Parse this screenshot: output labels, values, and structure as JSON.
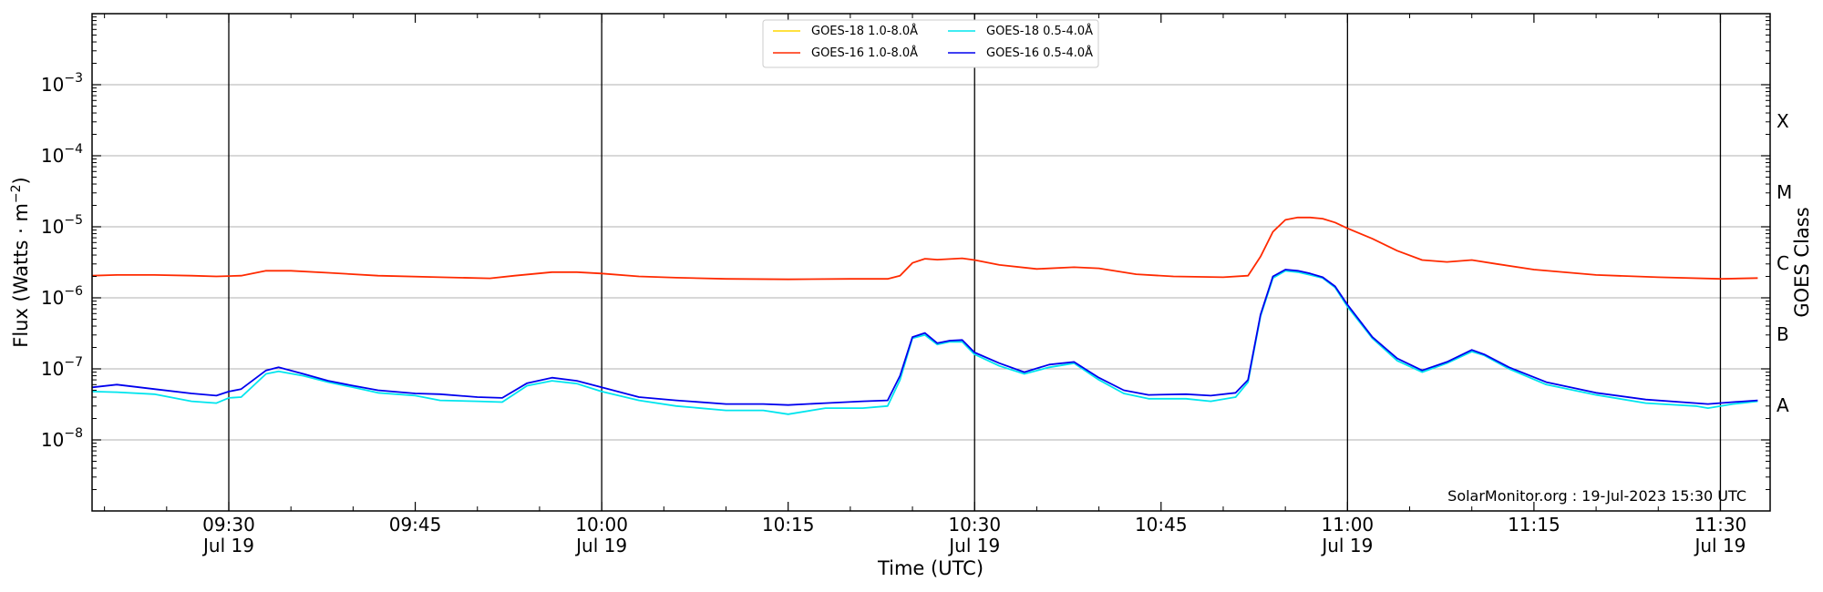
{
  "chart_data": {
    "type": "line",
    "xlabel": "Time (UTC)",
    "ylabel": "Flux (Watts · m⁻²)",
    "right_axis_label": "GOES Class",
    "y_scale": "log",
    "ylim": [
      1e-09,
      0.01
    ],
    "xlim": [
      "09:19",
      "11:34"
    ],
    "grid": "horizontal",
    "legend_position": "top-center",
    "watermark": "SolarMonitor.org : 19-Jul-2023 15:30 UTC",
    "x_ticks": [
      {
        "time": "09:30",
        "line1": "09:30",
        "line2": "Jul 19"
      },
      {
        "time": "09:45",
        "line1": "09:45",
        "line2": ""
      },
      {
        "time": "10:00",
        "line1": "10:00",
        "line2": "Jul 19"
      },
      {
        "time": "10:15",
        "line1": "10:15",
        "line2": ""
      },
      {
        "time": "10:30",
        "line1": "10:30",
        "line2": "Jul 19"
      },
      {
        "time": "10:45",
        "line1": "10:45",
        "line2": ""
      },
      {
        "time": "11:00",
        "line1": "11:00",
        "line2": "Jul 19"
      },
      {
        "time": "11:15",
        "line1": "11:15",
        "line2": ""
      },
      {
        "time": "11:30",
        "line1": "11:30",
        "line2": "Jul 19"
      }
    ],
    "vertical_lines": [
      "09:30",
      "10:00",
      "10:30",
      "11:00",
      "11:30"
    ],
    "y_ticks": [
      {
        "exp": -8,
        "label": "10",
        "sup": "−8"
      },
      {
        "exp": -7,
        "label": "10",
        "sup": "−7"
      },
      {
        "exp": -6,
        "label": "10",
        "sup": "−6"
      },
      {
        "exp": -5,
        "label": "10",
        "sup": "−5"
      },
      {
        "exp": -4,
        "label": "10",
        "sup": "−4"
      },
      {
        "exp": -3,
        "label": "10",
        "sup": "−3"
      }
    ],
    "goes_classes": [
      {
        "label": "A",
        "exp": -7.5
      },
      {
        "label": "B",
        "exp": -6.5
      },
      {
        "label": "C",
        "exp": -5.5
      },
      {
        "label": "M",
        "exp": -4.5
      },
      {
        "label": "X",
        "exp": -3.5
      }
    ],
    "series": [
      {
        "name": "GOES-18 1.0-8.0Å",
        "color": "#ffd700",
        "points": []
      },
      {
        "name": "GOES-16 1.0-8.0Å",
        "color": "#ff2a00",
        "points": [
          [
            "09:19",
            2.05e-06
          ],
          [
            "09:21",
            2.1e-06
          ],
          [
            "09:24",
            2.1e-06
          ],
          [
            "09:27",
            2.05e-06
          ],
          [
            "09:29",
            2e-06
          ],
          [
            "09:31",
            2.05e-06
          ],
          [
            "09:33",
            2.4e-06
          ],
          [
            "09:35",
            2.4e-06
          ],
          [
            "09:38",
            2.25e-06
          ],
          [
            "09:42",
            2.05e-06
          ],
          [
            "09:47",
            1.95e-06
          ],
          [
            "09:51",
            1.88e-06
          ],
          [
            "09:53",
            2.05e-06
          ],
          [
            "09:56",
            2.3e-06
          ],
          [
            "09:58",
            2.3e-06
          ],
          [
            "10:00",
            2.2e-06
          ],
          [
            "10:03",
            2e-06
          ],
          [
            "10:06",
            1.92e-06
          ],
          [
            "10:10",
            1.85e-06
          ],
          [
            "10:15",
            1.82e-06
          ],
          [
            "10:20",
            1.85e-06
          ],
          [
            "10:23",
            1.85e-06
          ],
          [
            "10:24",
            2.05e-06
          ],
          [
            "10:25",
            3.1e-06
          ],
          [
            "10:26",
            3.55e-06
          ],
          [
            "10:27",
            3.45e-06
          ],
          [
            "10:29",
            3.6e-06
          ],
          [
            "10:30",
            3.4e-06
          ],
          [
            "10:32",
            2.9e-06
          ],
          [
            "10:35",
            2.55e-06
          ],
          [
            "10:38",
            2.7e-06
          ],
          [
            "10:40",
            2.6e-06
          ],
          [
            "10:43",
            2.15e-06
          ],
          [
            "10:46",
            2e-06
          ],
          [
            "10:50",
            1.95e-06
          ],
          [
            "10:52",
            2.05e-06
          ],
          [
            "10:53",
            3.8e-06
          ],
          [
            "10:54",
            8.5e-06
          ],
          [
            "10:55",
            1.25e-05
          ],
          [
            "10:56",
            1.35e-05
          ],
          [
            "10:57",
            1.35e-05
          ],
          [
            "10:58",
            1.3e-05
          ],
          [
            "10:59",
            1.15e-05
          ],
          [
            "11:00",
            9.5e-06
          ],
          [
            "11:02",
            6.8e-06
          ],
          [
            "11:04",
            4.6e-06
          ],
          [
            "11:06",
            3.4e-06
          ],
          [
            "11:08",
            3.2e-06
          ],
          [
            "11:10",
            3.4e-06
          ],
          [
            "11:12",
            3e-06
          ],
          [
            "11:15",
            2.5e-06
          ],
          [
            "11:20",
            2.1e-06
          ],
          [
            "11:25",
            1.95e-06
          ],
          [
            "11:30",
            1.85e-06
          ],
          [
            "11:33",
            1.9e-06
          ]
        ]
      },
      {
        "name": "GOES-18 0.5-4.0Å",
        "color": "#00e5ee",
        "points": [
          [
            "09:19",
            4.8e-08
          ],
          [
            "09:21",
            4.7e-08
          ],
          [
            "09:24",
            4.4e-08
          ],
          [
            "09:27",
            3.5e-08
          ],
          [
            "09:29",
            3.3e-08
          ],
          [
            "09:30",
            3.9e-08
          ],
          [
            "09:31",
            4e-08
          ],
          [
            "09:33",
            8.5e-08
          ],
          [
            "09:34",
            9.2e-08
          ],
          [
            "09:36",
            8e-08
          ],
          [
            "09:38",
            6.5e-08
          ],
          [
            "09:40",
            5.5e-08
          ],
          [
            "09:42",
            4.6e-08
          ],
          [
            "09:45",
            4.2e-08
          ],
          [
            "09:47",
            3.6e-08
          ],
          [
            "09:50",
            3.5e-08
          ],
          [
            "09:52",
            3.4e-08
          ],
          [
            "09:54",
            5.8e-08
          ],
          [
            "09:56",
            6.8e-08
          ],
          [
            "09:58",
            6.2e-08
          ],
          [
            "10:00",
            4.8e-08
          ],
          [
            "10:03",
            3.6e-08
          ],
          [
            "10:06",
            3e-08
          ],
          [
            "10:10",
            2.6e-08
          ],
          [
            "10:13",
            2.6e-08
          ],
          [
            "10:15",
            2.3e-08
          ],
          [
            "10:18",
            2.8e-08
          ],
          [
            "10:21",
            2.8e-08
          ],
          [
            "10:23",
            3e-08
          ],
          [
            "10:24",
            7e-08
          ],
          [
            "10:25",
            2.7e-07
          ],
          [
            "10:26",
            3e-07
          ],
          [
            "10:27",
            2.2e-07
          ],
          [
            "10:28",
            2.4e-07
          ],
          [
            "10:29",
            2.4e-07
          ],
          [
            "10:30",
            1.6e-07
          ],
          [
            "10:32",
            1.1e-07
          ],
          [
            "10:34",
            8.5e-08
          ],
          [
            "10:36",
            1.05e-07
          ],
          [
            "10:38",
            1.2e-07
          ],
          [
            "10:40",
            7e-08
          ],
          [
            "10:42",
            4.5e-08
          ],
          [
            "10:44",
            3.8e-08
          ],
          [
            "10:47",
            3.8e-08
          ],
          [
            "10:49",
            3.5e-08
          ],
          [
            "10:51",
            4e-08
          ],
          [
            "10:52",
            6.5e-08
          ],
          [
            "10:53",
            5.5e-07
          ],
          [
            "10:54",
            1.9e-06
          ],
          [
            "10:55",
            2.4e-06
          ],
          [
            "10:56",
            2.3e-06
          ],
          [
            "10:57",
            2.1e-06
          ],
          [
            "10:58",
            1.9e-06
          ],
          [
            "10:59",
            1.4e-06
          ],
          [
            "11:00",
            7.5e-07
          ],
          [
            "11:02",
            2.7e-07
          ],
          [
            "11:04",
            1.3e-07
          ],
          [
            "11:06",
            9e-08
          ],
          [
            "11:08",
            1.2e-07
          ],
          [
            "11:10",
            1.75e-07
          ],
          [
            "11:11",
            1.55e-07
          ],
          [
            "11:13",
            1e-07
          ],
          [
            "11:16",
            6e-08
          ],
          [
            "11:20",
            4.3e-08
          ],
          [
            "11:24",
            3.3e-08
          ],
          [
            "11:28",
            3e-08
          ],
          [
            "11:29",
            2.8e-08
          ],
          [
            "11:31",
            3.2e-08
          ],
          [
            "11:33",
            3.5e-08
          ]
        ]
      },
      {
        "name": "GOES-16 0.5-4.0Å",
        "color": "#0000ee",
        "points": [
          [
            "09:19",
            5.5e-08
          ],
          [
            "09:21",
            6e-08
          ],
          [
            "09:24",
            5.2e-08
          ],
          [
            "09:27",
            4.5e-08
          ],
          [
            "09:29",
            4.2e-08
          ],
          [
            "09:30",
            4.8e-08
          ],
          [
            "09:31",
            5.2e-08
          ],
          [
            "09:33",
            9.5e-08
          ],
          [
            "09:34",
            1.05e-07
          ],
          [
            "09:36",
            8.5e-08
          ],
          [
            "09:38",
            6.8e-08
          ],
          [
            "09:40",
            5.8e-08
          ],
          [
            "09:42",
            5e-08
          ],
          [
            "09:45",
            4.5e-08
          ],
          [
            "09:47",
            4.4e-08
          ],
          [
            "09:50",
            4e-08
          ],
          [
            "09:52",
            3.9e-08
          ],
          [
            "09:54",
            6.3e-08
          ],
          [
            "09:56",
            7.5e-08
          ],
          [
            "09:58",
            6.8e-08
          ],
          [
            "10:00",
            5.5e-08
          ],
          [
            "10:03",
            4e-08
          ],
          [
            "10:06",
            3.6e-08
          ],
          [
            "10:10",
            3.2e-08
          ],
          [
            "10:13",
            3.2e-08
          ],
          [
            "10:15",
            3.1e-08
          ],
          [
            "10:18",
            3.3e-08
          ],
          [
            "10:21",
            3.5e-08
          ],
          [
            "10:23",
            3.6e-08
          ],
          [
            "10:24",
            8e-08
          ],
          [
            "10:25",
            2.8e-07
          ],
          [
            "10:26",
            3.2e-07
          ],
          [
            "10:27",
            2.3e-07
          ],
          [
            "10:28",
            2.5e-07
          ],
          [
            "10:29",
            2.55e-07
          ],
          [
            "10:30",
            1.7e-07
          ],
          [
            "10:32",
            1.2e-07
          ],
          [
            "10:34",
            9e-08
          ],
          [
            "10:36",
            1.15e-07
          ],
          [
            "10:38",
            1.25e-07
          ],
          [
            "10:40",
            7.5e-08
          ],
          [
            "10:42",
            5e-08
          ],
          [
            "10:44",
            4.3e-08
          ],
          [
            "10:47",
            4.4e-08
          ],
          [
            "10:49",
            4.2e-08
          ],
          [
            "10:51",
            4.6e-08
          ],
          [
            "10:52",
            7e-08
          ],
          [
            "10:53",
            5.8e-07
          ],
          [
            "10:54",
            2e-06
          ],
          [
            "10:55",
            2.5e-06
          ],
          [
            "10:56",
            2.4e-06
          ],
          [
            "10:57",
            2.2e-06
          ],
          [
            "10:58",
            1.95e-06
          ],
          [
            "10:59",
            1.45e-06
          ],
          [
            "11:00",
            8e-07
          ],
          [
            "11:02",
            2.8e-07
          ],
          [
            "11:04",
            1.4e-07
          ],
          [
            "11:06",
            9.5e-08
          ],
          [
            "11:08",
            1.25e-07
          ],
          [
            "11:10",
            1.85e-07
          ],
          [
            "11:11",
            1.6e-07
          ],
          [
            "11:13",
            1.05e-07
          ],
          [
            "11:16",
            6.5e-08
          ],
          [
            "11:20",
            4.6e-08
          ],
          [
            "11:24",
            3.7e-08
          ],
          [
            "11:28",
            3.3e-08
          ],
          [
            "11:29",
            3.2e-08
          ],
          [
            "11:31",
            3.4e-08
          ],
          [
            "11:33",
            3.6e-08
          ]
        ]
      }
    ]
  }
}
